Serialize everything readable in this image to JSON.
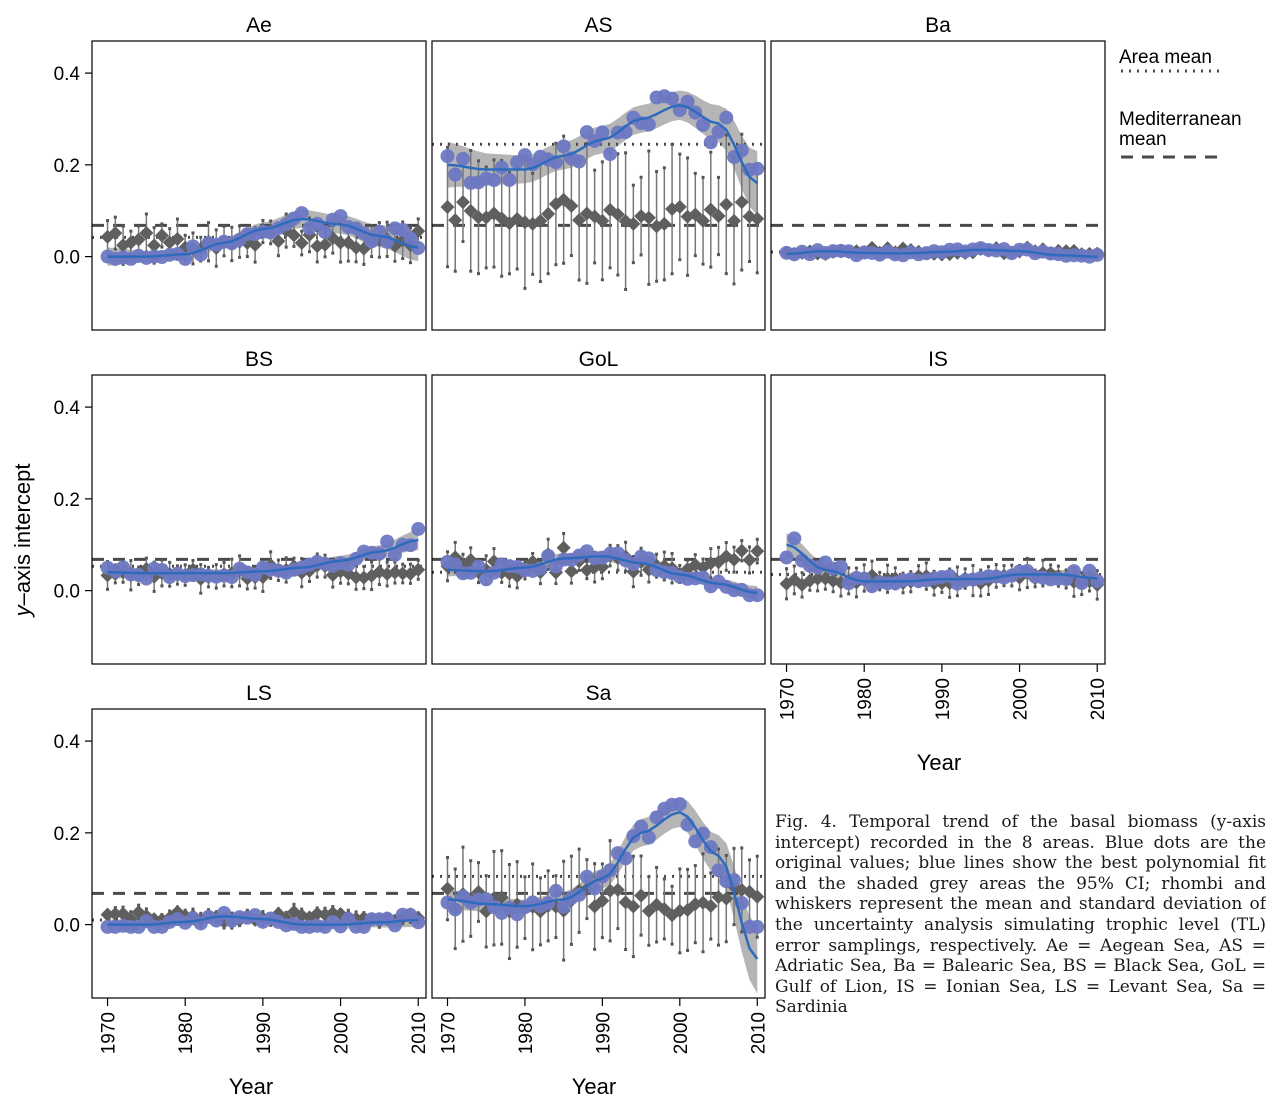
{
  "figure": {
    "ylabel_prefix": "y",
    "ylabel_suffix": "–axis intercept",
    "xlabel": "Year"
  },
  "legend": {
    "area_mean": "Area mean",
    "med_mean_line1": "Mediterranean",
    "med_mean_line2": "mean"
  },
  "caption": {
    "text": "Fig. 4. Temporal trend of the basal biomass (y-axis intercept) recorded in the 8 areas. Blue dots are the original values; blue lines show the best polynomial fit and the shaded grey areas the 95% CI; rhombi and whiskers represent the mean and standard deviation of the uncertainty analysis simulating trophic level (TL) error samplings, respectively. Ae = Aegean Sea, AS = Adriatic Sea, Ba = Balearic Sea, BS = Black Sea, GoL = Gulf of Lion, IS = Ionian Sea, LS = Levant Sea, Sa = Sardinia"
  },
  "colors": {
    "points": "#6e78c2",
    "fit_line": "#2e6bbd",
    "ci_band": "#b5b5b5",
    "rhombus": "#5f5f5f",
    "mean_lines": "#4a4a4a"
  },
  "chart_data": {
    "type": "scatter",
    "x_ticks": [
      1970,
      1980,
      1990,
      2000,
      2010
    ],
    "y_ticks": [
      0.0,
      0.2,
      0.4
    ],
    "y_tick_labels": [
      "0.0",
      "0.2",
      "0.4"
    ],
    "ylim": [
      -0.16,
      0.47
    ],
    "xlim": [
      1968,
      2011
    ],
    "grid": false,
    "legend_position": "right",
    "mediterranean_mean": 0.068,
    "panels": [
      {
        "name": "Ae",
        "area_mean": 0.042,
        "y_min": -0.005,
        "y_max": 0.16,
        "rhombus_range": [
          0.0,
          0.06
        ],
        "sd": 0.04,
        "fit": [
          [
            1970,
            0.0
          ],
          [
            1975,
            0.0
          ],
          [
            1980,
            0.005
          ],
          [
            1985,
            0.03
          ],
          [
            1990,
            0.06
          ],
          [
            1995,
            0.082
          ],
          [
            2000,
            0.07
          ],
          [
            2005,
            0.045
          ],
          [
            2010,
            0.02
          ]
        ],
        "ci_hw": [
          0.02,
          0.012,
          0.01,
          0.012,
          0.014,
          0.02,
          0.02,
          0.024,
          0.03
        ]
      },
      {
        "name": "AS",
        "area_mean": 0.245,
        "y_min": 0.1,
        "y_max": 0.445,
        "rhombus_range": [
          0.05,
          0.13
        ],
        "sd": 0.14,
        "fit": [
          [
            1970,
            0.2
          ],
          [
            1975,
            0.19
          ],
          [
            1980,
            0.19
          ],
          [
            1985,
            0.22
          ],
          [
            1990,
            0.255
          ],
          [
            1995,
            0.3
          ],
          [
            2000,
            0.33
          ],
          [
            2005,
            0.29
          ],
          [
            2010,
            0.16
          ]
        ],
        "ci_hw": [
          0.05,
          0.035,
          0.03,
          0.03,
          0.03,
          0.03,
          0.032,
          0.04,
          0.07
        ]
      },
      {
        "name": "Ba",
        "area_mean": 0.01,
        "y_min": -0.005,
        "y_max": 0.028,
        "rhombus_range": [
          0.0,
          0.02
        ],
        "sd": 0.005,
        "fit": [
          [
            1970,
            0.006
          ],
          [
            1975,
            0.012
          ],
          [
            1980,
            0.008
          ],
          [
            1985,
            0.007
          ],
          [
            1990,
            0.01
          ],
          [
            1995,
            0.015
          ],
          [
            2000,
            0.012
          ],
          [
            2005,
            0.003
          ],
          [
            2010,
            0.0
          ]
        ],
        "ci_hw": [
          0.006,
          0.005,
          0.004,
          0.004,
          0.004,
          0.004,
          0.005,
          0.005,
          0.006
        ]
      },
      {
        "name": "BS",
        "area_mean": 0.053,
        "y_min": 0.005,
        "y_max": 0.16,
        "rhombus_range": [
          0.01,
          0.06
        ],
        "sd": 0.03,
        "fit": [
          [
            1970,
            0.04
          ],
          [
            1975,
            0.038
          ],
          [
            1980,
            0.038
          ],
          [
            1985,
            0.038
          ],
          [
            1990,
            0.042
          ],
          [
            1995,
            0.05
          ],
          [
            2000,
            0.065
          ],
          [
            2005,
            0.085
          ],
          [
            2010,
            0.11
          ]
        ],
        "ci_hw": [
          0.014,
          0.01,
          0.008,
          0.008,
          0.008,
          0.009,
          0.011,
          0.014,
          0.022
        ]
      },
      {
        "name": "GoL",
        "area_mean": 0.04,
        "y_min": -0.01,
        "y_max": 0.235,
        "rhombus_range": [
          0.01,
          0.1
        ],
        "sd": 0.03,
        "fit": [
          [
            1970,
            0.045
          ],
          [
            1975,
            0.042
          ],
          [
            1980,
            0.05
          ],
          [
            1985,
            0.07
          ],
          [
            1990,
            0.075
          ],
          [
            1995,
            0.06
          ],
          [
            2000,
            0.035
          ],
          [
            2005,
            0.015
          ],
          [
            2010,
            -0.005
          ]
        ],
        "ci_hw": [
          0.014,
          0.01,
          0.01,
          0.012,
          0.012,
          0.01,
          0.01,
          0.01,
          0.015
        ]
      },
      {
        "name": "IS",
        "area_mean": 0.035,
        "y_min": 0.0,
        "y_max": 0.13,
        "rhombus_range": [
          0.005,
          0.04
        ],
        "sd": 0.03,
        "fit": [
          [
            1970,
            0.1
          ],
          [
            1975,
            0.045
          ],
          [
            1980,
            0.02
          ],
          [
            1985,
            0.02
          ],
          [
            1990,
            0.025
          ],
          [
            1995,
            0.025
          ],
          [
            2000,
            0.035
          ],
          [
            2005,
            0.035
          ],
          [
            2010,
            0.027
          ]
        ],
        "ci_hw": [
          0.025,
          0.014,
          0.01,
          0.008,
          0.008,
          0.008,
          0.009,
          0.01,
          0.014
        ]
      },
      {
        "name": "LS",
        "area_mean": 0.01,
        "y_min": -0.005,
        "y_max": 0.095,
        "rhombus_range": [
          0.0,
          0.03
        ],
        "sd": 0.015,
        "fit": [
          [
            1970,
            0.0
          ],
          [
            1975,
            0.0
          ],
          [
            1980,
            0.006
          ],
          [
            1985,
            0.018
          ],
          [
            1990,
            0.012
          ],
          [
            1995,
            0.0
          ],
          [
            2000,
            0.0
          ],
          [
            2005,
            0.005
          ],
          [
            2010,
            0.01
          ]
        ],
        "ci_hw": [
          0.012,
          0.008,
          0.008,
          0.01,
          0.01,
          0.009,
          0.009,
          0.011,
          0.016
        ]
      },
      {
        "name": "Sa",
        "area_mean": 0.105,
        "y_min": -0.005,
        "y_max": 0.335,
        "rhombus_range": [
          0.0,
          0.09
        ],
        "sd": 0.1,
        "fit": [
          [
            1970,
            0.055
          ],
          [
            1975,
            0.045
          ],
          [
            1980,
            0.04
          ],
          [
            1985,
            0.055
          ],
          [
            1990,
            0.1
          ],
          [
            1995,
            0.2
          ],
          [
            2000,
            0.245
          ],
          [
            2005,
            0.15
          ],
          [
            2010,
            -0.075
          ]
        ],
        "ci_hw": [
          0.022,
          0.016,
          0.014,
          0.016,
          0.022,
          0.03,
          0.032,
          0.045,
          0.075
        ]
      }
    ]
  }
}
